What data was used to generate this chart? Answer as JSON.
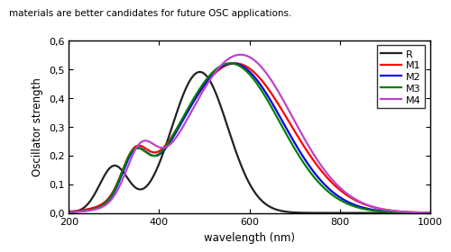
{
  "xlabel": "wavelength (nm)",
  "ylabel": "Oscillator strength",
  "xlim": [
    200,
    1000
  ],
  "ylim": [
    0.0,
    0.6
  ],
  "yticks": [
    0.0,
    0.1,
    0.2,
    0.3,
    0.4,
    0.5,
    0.6
  ],
  "xticks": [
    200,
    400,
    600,
    800,
    1000
  ],
  "curves": [
    {
      "label": "R",
      "color": "#222222",
      "peaks": [
        {
          "mu": 300,
          "sigma": 32,
          "amp": 0.16
        },
        {
          "mu": 490,
          "sigma": 62,
          "amp": 0.49
        }
      ]
    },
    {
      "label": "M1",
      "color": "#ff0000",
      "peaks": [
        {
          "mu": 345,
          "sigma": 28,
          "amp": 0.135
        },
        {
          "mu": 568,
          "sigma": 120,
          "amp": 0.52
        }
      ]
    },
    {
      "label": "M2",
      "color": "#0000ee",
      "peaks": [
        {
          "mu": 345,
          "sigma": 28,
          "amp": 0.14
        },
        {
          "mu": 562,
          "sigma": 112,
          "amp": 0.52
        }
      ]
    },
    {
      "label": "M3",
      "color": "#008000",
      "peaks": [
        {
          "mu": 343,
          "sigma": 28,
          "amp": 0.142
        },
        {
          "mu": 557,
          "sigma": 110,
          "amp": 0.52
        }
      ]
    },
    {
      "label": "M4",
      "color": "#bb44cc",
      "peaks": [
        {
          "mu": 358,
          "sigma": 32,
          "amp": 0.158
        },
        {
          "mu": 580,
          "sigma": 115,
          "amp": 0.55
        }
      ]
    }
  ],
  "background_color": "#ffffff",
  "header_text": "materials are better candidates for future OSC applications.",
  "header_fontsize": 7.5,
  "axis_fontsize": 8.5,
  "tick_fontsize": 8,
  "legend_fontsize": 8,
  "linewidth": 1.6
}
